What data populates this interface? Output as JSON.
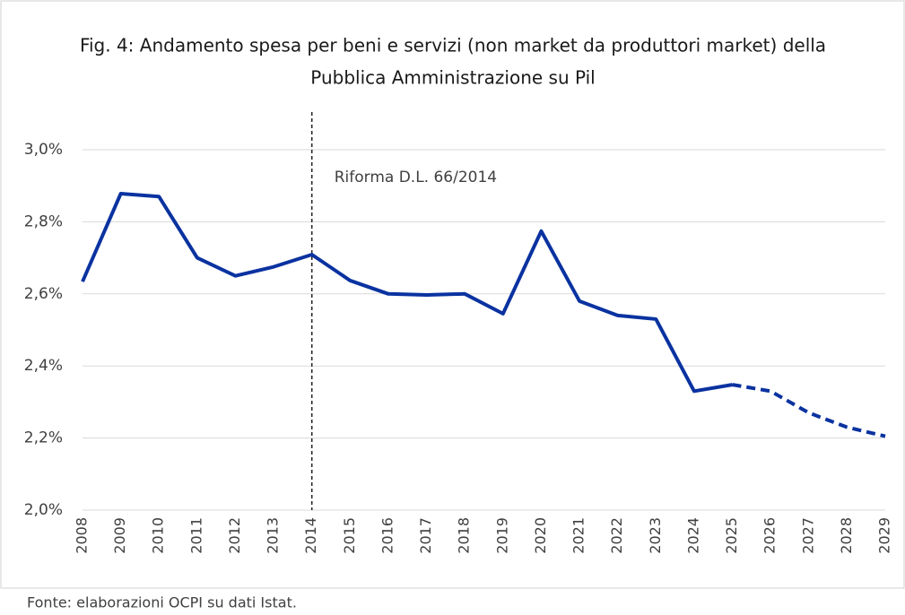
{
  "chart_data": {
    "type": "line",
    "title": [
      "Fig. 4: Andamento spesa per beni e servizi (non market da produttori market) della",
      "Pubblica Amministrazione su Pil"
    ],
    "categories": [
      "2008",
      "2009",
      "2010",
      "2011",
      "2012",
      "2013",
      "2014",
      "2015",
      "2016",
      "2017",
      "2018",
      "2019",
      "2020",
      "2021",
      "2022",
      "2023",
      "2024",
      "2025",
      "2026",
      "2027",
      "2028",
      "2029"
    ],
    "values": [
      2.634,
      2.878,
      2.87,
      2.7,
      2.65,
      2.675,
      2.709,
      2.637,
      2.6,
      2.597,
      2.6,
      2.545,
      2.774,
      2.58,
      2.54,
      2.53,
      2.33,
      2.348,
      2.33,
      2.27,
      2.23,
      2.205
    ],
    "color": "#0a32a0",
    "dashed_from": "2025",
    "ylim": [
      2.0,
      3.0
    ],
    "yticks": [
      {
        "value": 2.0,
        "label": "2,0%"
      },
      {
        "value": 2.2,
        "label": "2,2%"
      },
      {
        "value": 2.4,
        "label": "2,4%"
      },
      {
        "value": 2.6,
        "label": "2,6%"
      },
      {
        "value": 2.8,
        "label": "2,8%"
      },
      {
        "value": 3.0,
        "label": "3,0%"
      }
    ],
    "grid": true,
    "annotation": {
      "text": "Riforma D.L. 66/2014",
      "x": "2014"
    },
    "source": "Fonte: elaborazioni OCPI su dati Istat."
  }
}
